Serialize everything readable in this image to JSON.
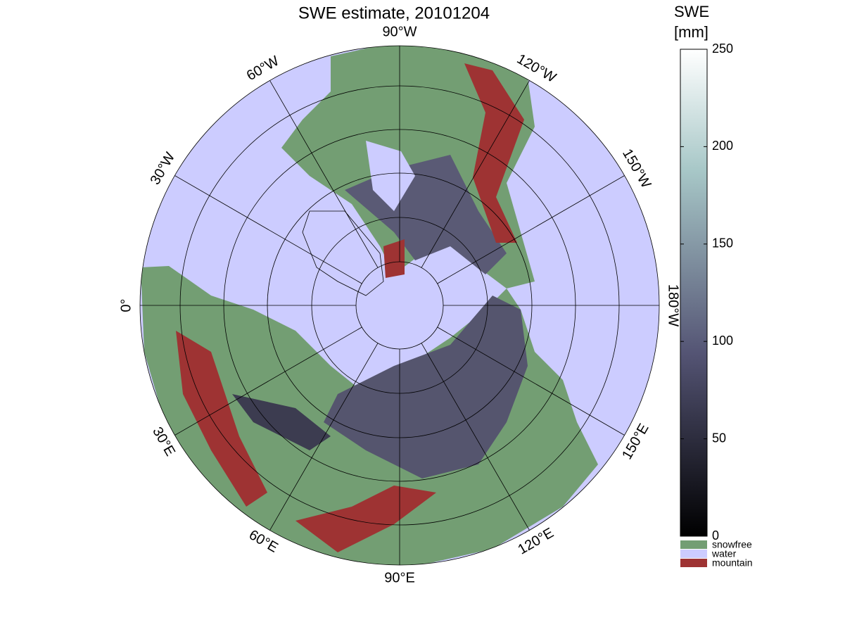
{
  "map": {
    "title": "SWE estimate, 20101204",
    "longitude_labels": [
      "90°W",
      "120°W",
      "150°W",
      "180°W",
      "150°E",
      "120°E",
      "90°E",
      "60°E",
      "30°E",
      "0°",
      "30°W",
      "60°W"
    ],
    "colorbar": {
      "label": [
        "SWE",
        "[mm]"
      ],
      "lim": [
        0,
        250
      ],
      "ticks": [
        0,
        50,
        100,
        150,
        200,
        250
      ]
    },
    "legend": [
      {
        "name": "snowfree",
        "color": "#739e73"
      },
      {
        "name": "water",
        "color": "#ccccff"
      },
      {
        "name": "mountain",
        "color": "#9e3333"
      }
    ]
  }
}
